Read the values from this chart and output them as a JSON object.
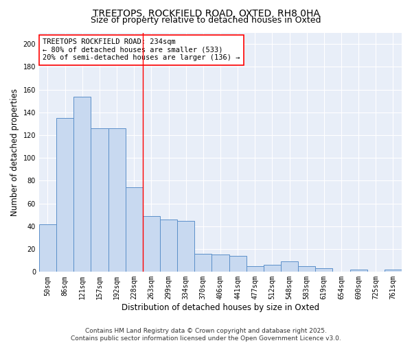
{
  "title": "TREETOPS, ROCKFIELD ROAD, OXTED, RH8 0HA",
  "subtitle": "Size of property relative to detached houses in Oxted",
  "xlabel": "Distribution of detached houses by size in Oxted",
  "ylabel": "Number of detached properties",
  "categories": [
    "50sqm",
    "86sqm",
    "121sqm",
    "157sqm",
    "192sqm",
    "228sqm",
    "263sqm",
    "299sqm",
    "334sqm",
    "370sqm",
    "406sqm",
    "441sqm",
    "477sqm",
    "512sqm",
    "548sqm",
    "583sqm",
    "619sqm",
    "654sqm",
    "690sqm",
    "725sqm",
    "761sqm"
  ],
  "values": [
    42,
    135,
    154,
    126,
    126,
    74,
    49,
    46,
    45,
    16,
    15,
    14,
    5,
    6,
    9,
    5,
    3,
    0,
    2,
    0,
    2
  ],
  "bar_color": "#c8d9f0",
  "bar_edge_color": "#5b8fc9",
  "vline_x": 5.5,
  "vline_color": "red",
  "annotation_text": "TREETOPS ROCKFIELD ROAD: 234sqm\n← 80% of detached houses are smaller (533)\n20% of semi-detached houses are larger (136) →",
  "annotation_box_color": "white",
  "annotation_box_edge_color": "red",
  "ylim": [
    0,
    210
  ],
  "yticks": [
    0,
    20,
    40,
    60,
    80,
    100,
    120,
    140,
    160,
    180,
    200
  ],
  "background_color": "#e8eef8",
  "grid_color": "#ffffff",
  "footer_line1": "Contains HM Land Registry data © Crown copyright and database right 2025.",
  "footer_line2": "Contains public sector information licensed under the Open Government Licence v3.0.",
  "title_fontsize": 10,
  "subtitle_fontsize": 9,
  "axis_label_fontsize": 8.5,
  "tick_fontsize": 7,
  "annotation_fontsize": 7.5,
  "footer_fontsize": 6.5
}
